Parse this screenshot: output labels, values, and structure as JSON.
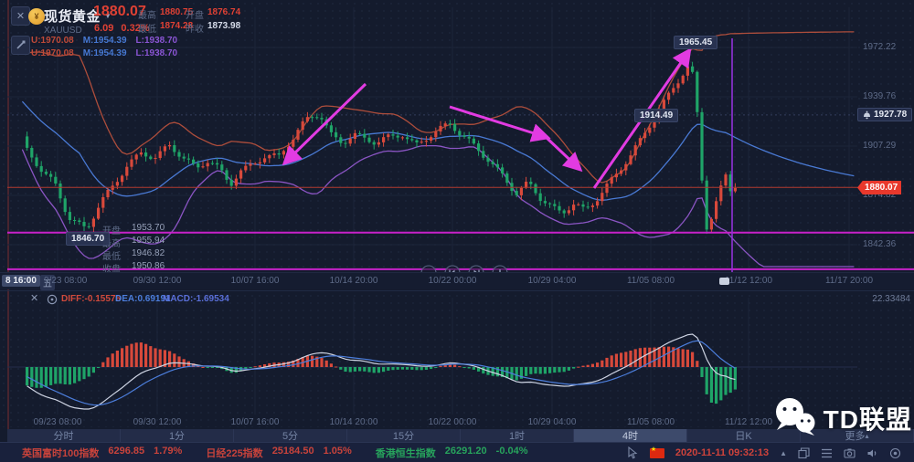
{
  "header": {
    "symbol_name": "现货黄金",
    "symbol_code": "XAUUSD",
    "price": "1880.07",
    "change": "6.09",
    "change_pct": "0.32%",
    "stats": [
      {
        "label": "最高",
        "value": "1880.75",
        "color": "#E04134"
      },
      {
        "label": "开盘",
        "value": "1876.74",
        "color": "#E04134"
      },
      {
        "label": "最低",
        "value": "1874.28",
        "color": "#E04134"
      },
      {
        "label": "昨收",
        "value": "1873.98",
        "color": "#D6DCEA"
      }
    ]
  },
  "boll": {
    "rows": [
      {
        "u": "U:1970.08",
        "m": "M:1954.39",
        "l": "L:1938.70"
      },
      {
        "u": "U:1970.08",
        "m": "M:1954.39",
        "l": "L:1938.70"
      }
    ]
  },
  "main_chart": {
    "alert_price": "1927.78",
    "price_badge": "1880.07",
    "labels": {
      "peak": "1965.45",
      "pullback": "1914.49",
      "low": "1846.70"
    },
    "ohlc_info": [
      {
        "label": "开盘",
        "value": "1953.70"
      },
      {
        "label": "最高",
        "value": "1955.94"
      },
      {
        "label": "最低",
        "value": "1946.82"
      },
      {
        "label": "收盘",
        "value": "1950.86"
      }
    ],
    "crosshair": {
      "time": "8 16:00",
      "day": "五"
    },
    "x_axis": [
      "9/23 08:00",
      "09/30 12:00",
      "10/07 16:00",
      "10/14 20:00",
      "10/22 00:00",
      "10/29 04:00",
      "11/05 08:00",
      "11/12 12:00",
      "11/17 20:00"
    ]
  },
  "macd": {
    "diff": "DIFF:-0.15576",
    "dea": "DEA:0.69191",
    "macd": "MACD:-1.69534",
    "max": "22.33484",
    "x_axis": [
      "09/23 08:00",
      "09/30 12:00",
      "10/07 16:00",
      "10/14 20:00",
      "10/22 00:00",
      "10/29 04:00",
      "11/05 08:00",
      "11/12 12:00"
    ]
  },
  "timeframe_bar": {
    "items": [
      "分时",
      "1分",
      "5分",
      "15分",
      "1时",
      "4时",
      "日K",
      "更多"
    ],
    "selected": "4时",
    "more_caret": "▴"
  },
  "ticker": [
    {
      "name": "英国富时100指数",
      "value": "6296.85",
      "pct": "1.79%",
      "color": "#C8433B"
    },
    {
      "name": "日经225指数",
      "value": "25184.50",
      "pct": "1.05%",
      "color": "#C8433B"
    },
    {
      "name": "香港恒生指数",
      "value": "26291.20",
      "pct": "-0.04%",
      "color": "#27A35C"
    }
  ],
  "status_bar": {
    "datetime": "2020-11-11 09:32:13"
  },
  "watermark": "TD联盟",
  "chart_data": {
    "type": "candlestick",
    "symbol": "XAUUSD",
    "indicators": [
      "BOLL",
      "MACD"
    ],
    "price_ticks": [
      1972.22,
      1939.76,
      1907.29,
      1874.82,
      1842.36
    ],
    "alert_price": 1927.78,
    "last_price": 1880.07,
    "hlines": [
      1850.3,
      1826.2
    ],
    "vline_x": 801,
    "axis_map": {
      "p0": 1907.29,
      "y0": 160,
      "ppu": 1.663
    },
    "x_ticks": [
      63,
      172,
      279,
      387,
      495,
      604,
      712,
      819,
      929
    ],
    "price_anchors": [
      [
        -12,
        1958
      ],
      [
        0,
        1945
      ],
      [
        15,
        1922
      ],
      [
        30,
        1903
      ],
      [
        45,
        1893
      ],
      [
        60,
        1885
      ],
      [
        75,
        1862
      ],
      [
        95,
        1851
      ],
      [
        110,
        1868
      ],
      [
        125,
        1880
      ],
      [
        140,
        1896
      ],
      [
        155,
        1905
      ],
      [
        170,
        1902
      ],
      [
        185,
        1908
      ],
      [
        200,
        1898
      ],
      [
        215,
        1890
      ],
      [
        228,
        1897
      ],
      [
        240,
        1893
      ],
      [
        252,
        1884
      ],
      [
        262,
        1893
      ],
      [
        275,
        1896
      ],
      [
        290,
        1900
      ],
      [
        305,
        1898
      ],
      [
        320,
        1910
      ],
      [
        335,
        1925
      ],
      [
        345,
        1930
      ],
      [
        352,
        1928
      ],
      [
        362,
        1917
      ],
      [
        375,
        1911
      ],
      [
        388,
        1914
      ],
      [
        400,
        1910
      ],
      [
        412,
        1907
      ],
      [
        425,
        1912
      ],
      [
        440,
        1916
      ],
      [
        455,
        1910
      ],
      [
        470,
        1916
      ],
      [
        482,
        1919
      ],
      [
        492,
        1921
      ],
      [
        505,
        1912
      ],
      [
        520,
        1905
      ],
      [
        535,
        1898
      ],
      [
        550,
        1890
      ],
      [
        565,
        1878
      ],
      [
        578,
        1884
      ],
      [
        592,
        1871
      ],
      [
        605,
        1864
      ],
      [
        615,
        1861
      ],
      [
        628,
        1869
      ],
      [
        640,
        1866
      ],
      [
        652,
        1874
      ],
      [
        665,
        1884
      ],
      [
        678,
        1892
      ],
      [
        690,
        1900
      ],
      [
        702,
        1910
      ],
      [
        714,
        1922
      ],
      [
        726,
        1935
      ],
      [
        738,
        1948
      ],
      [
        748,
        1958
      ],
      [
        755,
        1964
      ],
      [
        760,
        1950
      ],
      [
        765,
        1915
      ],
      [
        770,
        1868
      ],
      [
        774,
        1852
      ],
      [
        780,
        1864
      ],
      [
        788,
        1877
      ],
      [
        795,
        1887
      ],
      [
        800,
        1874
      ],
      [
        806,
        1881
      ]
    ],
    "arrows": [
      [
        400,
        92,
        313,
        177
      ],
      [
        492,
        117,
        597,
        150
      ],
      [
        597,
        150,
        633,
        184
      ],
      [
        650,
        206,
        753,
        57
      ]
    ],
    "colors": {
      "up": "#D8493B",
      "down": "#1FA468",
      "boll_upper": "#B5503C",
      "boll_mid": "#4C7EDC",
      "boll_lower": "#9158CC",
      "annotation": "#E23BE2",
      "hline": "#C722C9",
      "vline": "#9232D8",
      "price_line": "#B23A2E"
    }
  }
}
